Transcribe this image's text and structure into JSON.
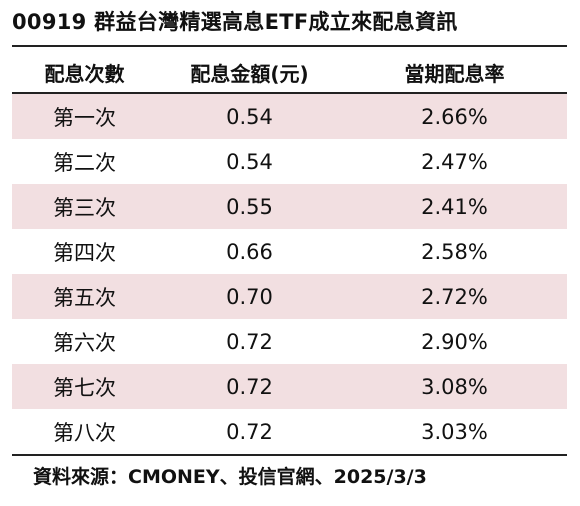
{
  "title": "00919 群益台灣精選高息ETF成立來配息資訊",
  "table": {
    "headers": [
      "配息次數",
      "配息金額(元)",
      "當期配息率"
    ],
    "rows": [
      [
        "第一次",
        "0.54",
        "2.66%"
      ],
      [
        "第二次",
        "0.54",
        "2.47%"
      ],
      [
        "第三次",
        "0.55",
        "2.41%"
      ],
      [
        "第四次",
        "0.66",
        "2.58%"
      ],
      [
        "第五次",
        "0.70",
        "2.72%"
      ],
      [
        "第六次",
        "0.72",
        "2.90%"
      ],
      [
        "第七次",
        "0.72",
        "3.08%"
      ],
      [
        "第八次",
        "0.72",
        "3.03%"
      ]
    ]
  },
  "source": "資料來源：CMONEY、投信官網、2025/3/3",
  "colors": {
    "shaded_row": "#f2dfe1",
    "rule": "#222222"
  }
}
